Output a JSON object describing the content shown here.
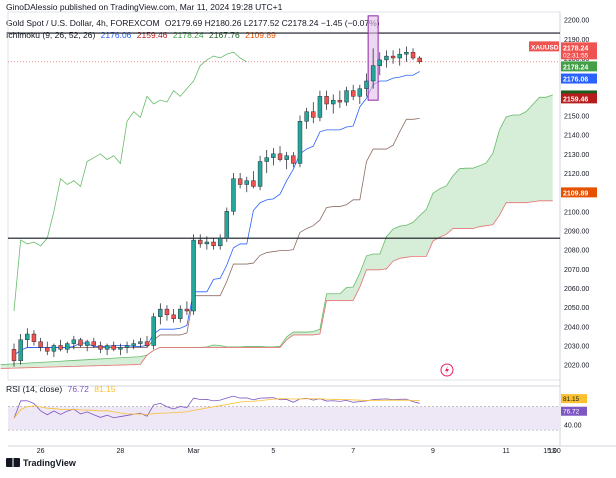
{
  "header": {
    "author_line": "GinoDAlessio published on TradingView.com, Mar 11, 2024 19:28 UTC+1",
    "symbol_line": "Gold Spot / U.S. Dollar, 4h, FOREXCOM",
    "ohlc": "O2179.69  H2180.26  L2177.52  C2178.24  −1.45 (−0.07%)",
    "ichimoku_label": "Ichimoku (9, 26, 52, 26)",
    "ichimoku_values": [
      "2176.06",
      "2159.46",
      "2178.24",
      "2167.76",
      "2109.89"
    ],
    "rsi_label": "RSI (14, close)",
    "rsi_values": [
      "76.72",
      "81.15"
    ]
  },
  "footer": {
    "brand": "TradingView"
  },
  "colors": {
    "up": "#26a69a",
    "down": "#ef5350",
    "conversion": "#2962ff",
    "base": "#b71c1c",
    "lagging": "#43a047",
    "span_a": "#a5d6a7",
    "span_b": "#ef9a9a",
    "rsi": "#7e57c2",
    "rsi_band": "#ede7f6",
    "price_tag": "#ef5350"
  },
  "chart_data": [
    {
      "type": "candlestick",
      "title": "Gold Spot / U.S. Dollar, 4h, FOREXCOM",
      "symbol_tag": "XAUUSD",
      "countdown": "02:31:55",
      "y_ticks": [
        2020,
        2030,
        2040,
        2050,
        2060,
        2070,
        2080,
        2090,
        2100,
        2110,
        2120,
        2130,
        2140,
        2150,
        2160,
        2170,
        2180,
        2190,
        2200
      ],
      "ylim": [
        2012,
        2204
      ],
      "x_ticks": [
        {
          "label": "26",
          "i": 4
        },
        {
          "label": "28",
          "i": 16
        },
        {
          "label": "Mar",
          "i": 27
        },
        {
          "label": "5",
          "i": 39
        },
        {
          "label": "7",
          "i": 51
        },
        {
          "label": "9",
          "i": 63
        },
        {
          "label": "11",
          "i": 63.2
        },
        {
          "label": "13",
          "i": 75
        },
        {
          "label": "15:00",
          "i": 82
        }
      ],
      "horizontal_lines": [
        2193,
        2086
      ],
      "last_price_labels": [
        {
          "value": "2178.24",
          "color": "#ef5350"
        },
        {
          "value": "2178.24",
          "color": "#43a047"
        },
        {
          "value": "2176.06",
          "color": "#2962ff"
        },
        {
          "value": "2167.76",
          "color": "#1b5e20"
        },
        {
          "value": "2159.46",
          "color": "#b71c1c"
        },
        {
          "value": "2109.89",
          "color": "#e65100"
        }
      ],
      "candles": [
        [
          2028,
          2031,
          2019,
          2022
        ],
        [
          2022,
          2036,
          2020,
          2033
        ],
        [
          2033,
          2039,
          2029,
          2036
        ],
        [
          2036,
          2038,
          2030,
          2032
        ],
        [
          2032,
          2034,
          2027,
          2029
        ],
        [
          2029,
          2032,
          2025,
          2027
        ],
        [
          2027,
          2031,
          2024,
          2030
        ],
        [
          2030,
          2033,
          2027,
          2028
        ],
        [
          2028,
          2032,
          2026,
          2031
        ],
        [
          2031,
          2035,
          2028,
          2033
        ],
        [
          2033,
          2034,
          2029,
          2030
        ],
        [
          2030,
          2033,
          2027,
          2032
        ],
        [
          2032,
          2034,
          2029,
          2030
        ],
        [
          2030,
          2032,
          2026,
          2028
        ],
        [
          2028,
          2031,
          2025,
          2030
        ],
        [
          2030,
          2032,
          2027,
          2028
        ],
        [
          2028,
          2031,
          2025,
          2029
        ],
        [
          2029,
          2032,
          2026,
          2030
        ],
        [
          2030,
          2033,
          2028,
          2031
        ],
        [
          2031,
          2034,
          2029,
          2032
        ],
        [
          2032,
          2035,
          2029,
          2030
        ],
        [
          2030,
          2047,
          2028,
          2045
        ],
        [
          2045,
          2052,
          2041,
          2049
        ],
        [
          2049,
          2051,
          2043,
          2046
        ],
        [
          2046,
          2049,
          2042,
          2044
        ],
        [
          2044,
          2051,
          2042,
          2049
        ],
        [
          2049,
          2053,
          2046,
          2048
        ],
        [
          2048,
          2088,
          2046,
          2085
        ],
        [
          2085,
          2088,
          2081,
          2083
        ],
        [
          2083,
          2087,
          2080,
          2084
        ],
        [
          2084,
          2086,
          2080,
          2082
        ],
        [
          2082,
          2088,
          2080,
          2086
        ],
        [
          2086,
          2102,
          2084,
          2100
        ],
        [
          2100,
          2120,
          2098,
          2117
        ],
        [
          2117,
          2120,
          2112,
          2114
        ],
        [
          2114,
          2118,
          2110,
          2116
        ],
        [
          2116,
          2121,
          2112,
          2113
        ],
        [
          2113,
          2129,
          2111,
          2126
        ],
        [
          2126,
          2132,
          2120,
          2128
        ],
        [
          2128,
          2133,
          2124,
          2130
        ],
        [
          2130,
          2134,
          2126,
          2127
        ],
        [
          2127,
          2131,
          2122,
          2129
        ],
        [
          2129,
          2131,
          2123,
          2125
        ],
        [
          2125,
          2150,
          2123,
          2147
        ],
        [
          2147,
          2154,
          2143,
          2152
        ],
        [
          2152,
          2157,
          2146,
          2149
        ],
        [
          2149,
          2163,
          2147,
          2160
        ],
        [
          2160,
          2163,
          2153,
          2156
        ],
        [
          2156,
          2161,
          2151,
          2158
        ],
        [
          2158,
          2163,
          2154,
          2157
        ],
        [
          2157,
          2165,
          2155,
          2163
        ],
        [
          2163,
          2166,
          2158,
          2160
        ],
        [
          2160,
          2166,
          2156,
          2164
        ],
        [
          2164,
          2172,
          2160,
          2168
        ],
        [
          2168,
          2185,
          2164,
          2176
        ],
        [
          2176,
          2183,
          2171,
          2179
        ],
        [
          2179,
          2184,
          2175,
          2181
        ],
        [
          2181,
          2184,
          2177,
          2180
        ],
        [
          2180,
          2185,
          2176,
          2182
        ],
        [
          2182,
          2186,
          2178,
          2183
        ],
        [
          2183,
          2185,
          2179,
          2180
        ],
        [
          2180,
          2181,
          2177,
          2178
        ]
      ]
    },
    {
      "type": "line",
      "title": "RSI (14, close)",
      "y_ticks": [
        40
      ],
      "band": [
        30,
        70
      ],
      "levels": {
        "rsi": 76.72,
        "ma": 81.15
      },
      "ylim": [
        20,
        95
      ]
    }
  ],
  "alert_icon": "lightning-icon"
}
